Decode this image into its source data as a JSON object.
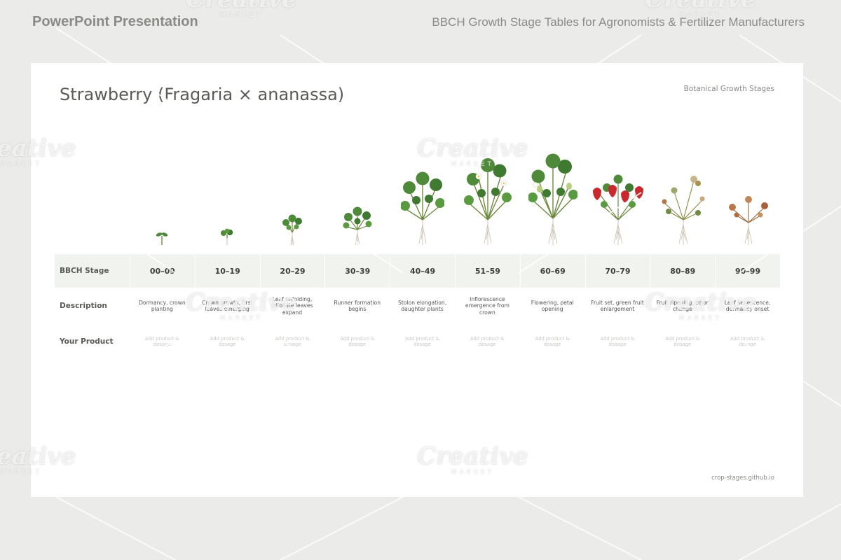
{
  "header": {
    "left_title": "PowerPoint Presentation",
    "right_title": "BBCH Growth Stage Tables for Agronomists & Fertilizer Manufacturers"
  },
  "slide": {
    "title": "Strawberry (Fragaria × ananassa)",
    "subtitle": "Botanical Growth Stages",
    "footer": "crop-stages.github.io"
  },
  "table": {
    "row_labels": {
      "stage": "BBCH Stage",
      "description": "Description",
      "product": "Your Product"
    },
    "stages": [
      {
        "code": "00–09",
        "description": "Dormancy, crown planting",
        "product": "Add product & dosage"
      },
      {
        "code": "10–19",
        "description": "Crown growth, first leaves emerging",
        "product": "Add product & dosage"
      },
      {
        "code": "20–29",
        "description": "Leaf unfolding, trifoliate leaves expand",
        "product": "Add product & dosage"
      },
      {
        "code": "30–39",
        "description": "Runner formation begins",
        "product": "Add product & dosage"
      },
      {
        "code": "40–49",
        "description": "Stolon elongation, daughter plants",
        "product": "Add product & dosage"
      },
      {
        "code": "51–59",
        "description": "Inflorescence emergence from crown",
        "product": "Add product & dosage"
      },
      {
        "code": "60–69",
        "description": "Flowering, petal opening",
        "product": "Add product & dosage"
      },
      {
        "code": "70–79",
        "description": "Fruit set, green fruit enlargement",
        "product": "Add product & dosage"
      },
      {
        "code": "80–89",
        "description": "Fruit ripening, color change",
        "product": "Add product & dosage"
      },
      {
        "code": "90–99",
        "description": "Leaf senescence, dormancy onset",
        "product": "Add product & dosage"
      }
    ]
  },
  "watermark": {
    "brand": "Creative",
    "sub": "MARKET"
  },
  "colors": {
    "leaf": "#4f8a3a",
    "leaf_dark": "#2f6a2a",
    "stem": "#6d8a3f",
    "root": "#c9bfae",
    "berry": "#c8282e",
    "green_berry": "#b9cf7e",
    "flower": "#ffffff",
    "senescent": "#b8774a"
  }
}
